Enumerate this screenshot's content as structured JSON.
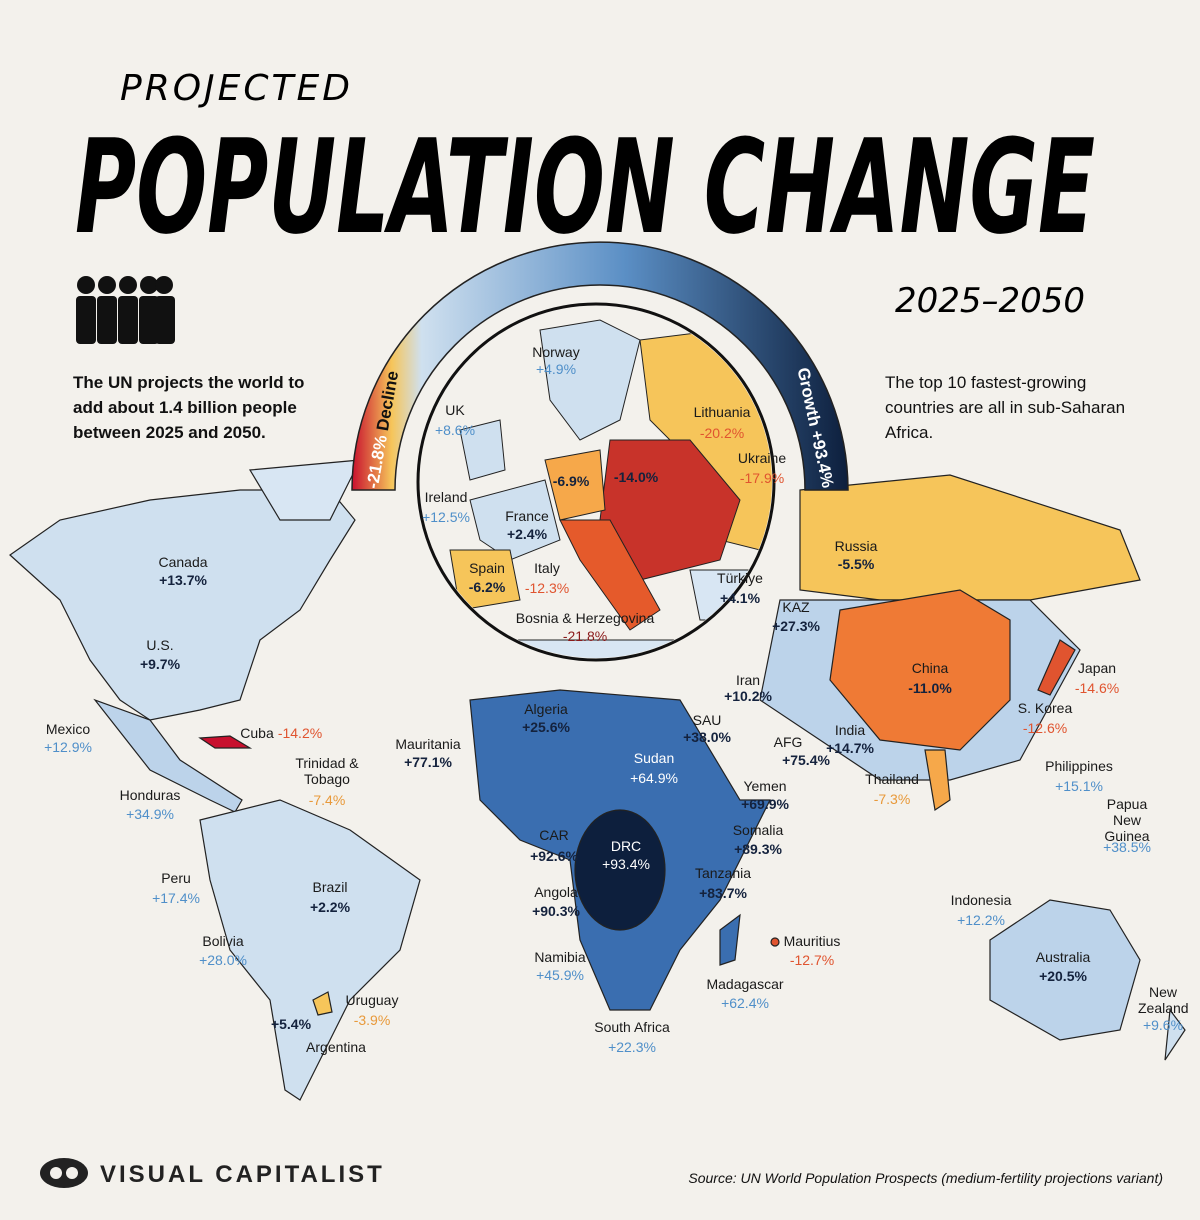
{
  "header": {
    "kicker": "PROJECTED",
    "title": "POPULATION CHANGE",
    "years": "2025–2050"
  },
  "intro": "The UN projects the world to add about 1.4 billion people between 2025 and 2050.",
  "note": "The top 10 fastest-growing countries are all in sub-Saharan Africa.",
  "scale": {
    "low_value": "-21.8%",
    "low_label": "Decline",
    "high_label": "Growth",
    "high_value": "+93.4%"
  },
  "labels": [
    {
      "name": "Norway",
      "value": "+4.9%"
    },
    {
      "name": "UK",
      "value": "+8.6%"
    },
    {
      "name": "Lithuania",
      "value": "-20.2%"
    },
    {
      "name": "Ukraine",
      "value": "-17.9%"
    },
    {
      "value": "-6.9%"
    },
    {
      "value": "-14.0%"
    },
    {
      "name": "Ireland",
      "value": "+12.5%"
    },
    {
      "name": "France",
      "value": "+2.4%"
    },
    {
      "name": "Spain",
      "value": "-6.2%"
    },
    {
      "name": "Italy",
      "value": "-12.3%"
    },
    {
      "name": "Türkiye",
      "value": "+4.1%"
    },
    {
      "name": "Bosnia & Herzegovina",
      "value": "-21.8%"
    },
    {
      "name": "Canada",
      "value": "+13.7%"
    },
    {
      "name": "Russia",
      "value": "-5.5%"
    },
    {
      "name": "KAZ",
      "value": "+27.3%"
    },
    {
      "name": "U.S.",
      "value": "+9.7%"
    },
    {
      "name": "China",
      "value": "-11.0%"
    },
    {
      "name": "Japan",
      "value": "-14.6%"
    },
    {
      "name": "Iran",
      "value": "+10.2%"
    },
    {
      "name": "Mexico",
      "value": "+12.9%"
    },
    {
      "name": "Cuba",
      "value": "-14.2%"
    },
    {
      "name": "Algeria",
      "value": "+25.6%"
    },
    {
      "name": "S. Korea",
      "value": "-12.6%"
    },
    {
      "name": "SAU",
      "value": "+38.0%"
    },
    {
      "name": "India",
      "value": "+14.7%"
    },
    {
      "name": "AFG",
      "value": "+75.4%"
    },
    {
      "name": "Mauritania",
      "value": "+77.1%"
    },
    {
      "name": "Sudan",
      "value": "+64.9%"
    },
    {
      "name": "Trinidad & Tobago",
      "value": "-7.4%"
    },
    {
      "name": "Yemen",
      "value": "+69.9%"
    },
    {
      "name": "Thailand",
      "value": "-7.3%"
    },
    {
      "name": "Philippines",
      "value": "+15.1%"
    },
    {
      "name": "Honduras",
      "value": "+34.9%"
    },
    {
      "name": "Papua New Guinea",
      "value": "+38.5%"
    },
    {
      "name": "Somalia",
      "value": "+89.3%"
    },
    {
      "name": "CAR",
      "value": "+92.6%"
    },
    {
      "name": "DRC",
      "value": "+93.4%"
    },
    {
      "name": "Peru",
      "value": "+17.4%"
    },
    {
      "name": "Tanzania",
      "value": "+83.7%"
    },
    {
      "name": "Brazil",
      "value": "+2.2%"
    },
    {
      "name": "Angola",
      "value": "+90.3%"
    },
    {
      "name": "Indonesia",
      "value": "+12.2%"
    },
    {
      "name": "Bolivia",
      "value": "+28.0%"
    },
    {
      "name": "Mauritius",
      "value": "-12.7%"
    },
    {
      "name": "Namibia",
      "value": "+45.9%"
    },
    {
      "name": "Australia",
      "value": "+20.5%"
    },
    {
      "name": "Madagascar",
      "value": "+62.4%"
    },
    {
      "name": "Uruguay",
      "value": "-3.9%"
    },
    {
      "name": "New Zealand",
      "value": "+9.6%"
    },
    {
      "name": "Argentina",
      "value": "+5.4%"
    },
    {
      "name": "South Africa",
      "value": "+22.3%"
    }
  ],
  "footer": {
    "brand": "VISUAL CAPITALIST",
    "source": "Source: UN World Population Prospects (medium-fertility projections variant)"
  }
}
